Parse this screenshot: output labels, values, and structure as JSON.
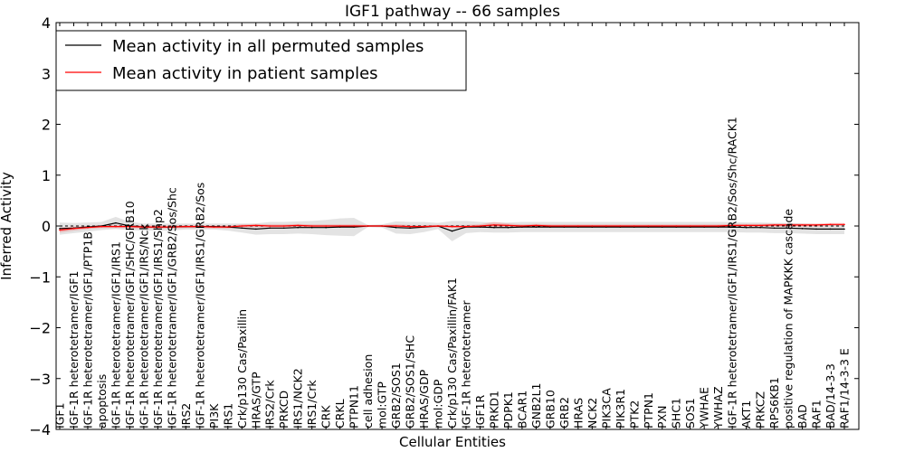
{
  "chart_data": {
    "type": "line",
    "title": "IGF1 pathway -- 66 samples",
    "xlabel": "Cellular Entities",
    "ylabel": "Inferred Activity",
    "ylim": [
      -4,
      4
    ],
    "yticks": [
      -4,
      -3,
      -2,
      -1,
      0,
      1,
      2,
      3,
      4
    ],
    "ytick_labels": [
      "−4",
      "−3",
      "−2",
      "−1",
      "0",
      "1",
      "2",
      "3",
      "4"
    ],
    "legend_position": "upper-left",
    "legend": [
      {
        "label": "Mean activity in all permuted samples",
        "color": "#000000"
      },
      {
        "label": "Mean activity in patient samples",
        "color": "#ff0000"
      }
    ],
    "categories": [
      "IGF1",
      "IGF-1R heterotetramer/IGF1",
      "IGF-1R heterotetramer/IGF1/PTP1B",
      "apoptosis",
      "IGF-1R heterotetramer/IGF1/IRS1",
      "IGF-1R heterotetramer/IGF1/SHC/GRB10",
      "IGF-1R heterotetramer/IGF1/IRS/Nck",
      "IGF-1R heterotetramer/IGF1/IRS1/Shp2",
      "IGF-1R heterotetramer/IGF1/GRB2/Sos/Shc",
      "IRS2",
      "IGF-1R heterotetramer/IGF1/IRS1/GRB2/Sos",
      "PI3K",
      "IRS1",
      "Crk/p130 Cas/Paxillin",
      "HRAS/GTP",
      "IRS2/Crk",
      "PRKCD",
      "IRS1/NCK2",
      "IRS1/Crk",
      "CRK",
      "CRKL",
      "PTPN11",
      "cell adhesion",
      "mol:GTP",
      "GRB2/SOS1",
      "GRB2/SOS1/SHC",
      "HRAS/GDP",
      "mol:GDP",
      "Crk/p130 Cas/Paxillin/FAK1",
      "IGF-1R heterotetramer",
      "IGF1R",
      "PRKD1",
      "PDPK1",
      "BCAR1",
      "GNB2L1",
      "GRB10",
      "GRB2",
      "HRAS",
      "NCK2",
      "PIK3CA",
      "PIK3R1",
      "PTK2",
      "PTPN1",
      "PXN",
      "SHC1",
      "SOS1",
      "YWHAE",
      "YWHAZ",
      "IGF-1R heterotetramer/IGF1/IRS1/GRB2/Sos/Shc/RACK1",
      "AKT1",
      "PRKCZ",
      "RPS6KB1",
      "positive regulation of MAPKKK cascade",
      "BAD",
      "RAF1",
      "BAD/14-3-3",
      "RAF1/14-3-3 E"
    ],
    "series": [
      {
        "name": "Mean activity in all permuted samples",
        "color": "#000000",
        "values": [
          -0.05,
          -0.04,
          -0.02,
          0.0,
          0.06,
          0.0,
          -0.02,
          -0.02,
          -0.02,
          -0.01,
          -0.01,
          -0.01,
          -0.02,
          -0.04,
          -0.06,
          -0.04,
          -0.04,
          -0.03,
          -0.03,
          -0.03,
          -0.02,
          -0.02,
          0.0,
          0.0,
          -0.03,
          -0.04,
          -0.02,
          0.0,
          -0.1,
          -0.02,
          -0.02,
          -0.03,
          -0.03,
          -0.02,
          -0.02,
          -0.02,
          -0.02,
          -0.02,
          -0.02,
          -0.02,
          -0.02,
          -0.02,
          -0.02,
          -0.02,
          -0.02,
          -0.02,
          -0.02,
          -0.02,
          -0.02,
          -0.03,
          -0.03,
          -0.04,
          -0.04,
          -0.05,
          -0.06,
          -0.06,
          -0.06
        ],
        "band": [
          0.12,
          0.1,
          0.09,
          0.08,
          0.12,
          0.08,
          0.07,
          0.07,
          0.07,
          0.06,
          0.06,
          0.06,
          0.07,
          0.09,
          0.11,
          0.12,
          0.12,
          0.12,
          0.13,
          0.15,
          0.17,
          0.18,
          0.02,
          0.03,
          0.12,
          0.12,
          0.1,
          0.06,
          0.2,
          0.12,
          0.1,
          0.1,
          0.1,
          0.1,
          0.1,
          0.1,
          0.1,
          0.1,
          0.1,
          0.1,
          0.1,
          0.1,
          0.1,
          0.1,
          0.1,
          0.1,
          0.1,
          0.1,
          0.1,
          0.1,
          0.1,
          0.1,
          0.1,
          0.1,
          0.1,
          0.1,
          0.1
        ]
      },
      {
        "name": "Mean activity in patient samples",
        "color": "#ff0000",
        "values": [
          -0.08,
          -0.05,
          -0.03,
          -0.01,
          -0.01,
          -0.01,
          -0.02,
          -0.02,
          -0.02,
          -0.01,
          -0.01,
          -0.02,
          -0.02,
          0.0,
          0.01,
          0.0,
          0.0,
          0.01,
          0.0,
          0.0,
          0.0,
          0.0,
          0.0,
          0.0,
          0.0,
          -0.01,
          -0.01,
          0.0,
          -0.01,
          -0.01,
          0.0,
          0.02,
          0.01,
          0.0,
          0.01,
          0.0,
          0.0,
          0.0,
          0.0,
          0.0,
          0.0,
          0.0,
          0.0,
          0.0,
          0.0,
          0.0,
          0.0,
          0.0,
          0.01,
          0.01,
          0.01,
          0.02,
          0.02,
          0.02,
          0.02,
          0.03,
          0.03
        ],
        "band": [
          0.05,
          0.04,
          0.03,
          0.03,
          0.03,
          0.03,
          0.03,
          0.03,
          0.03,
          0.03,
          0.03,
          0.03,
          0.03,
          0.03,
          0.03,
          0.03,
          0.03,
          0.03,
          0.03,
          0.03,
          0.03,
          0.03,
          0.02,
          0.02,
          0.03,
          0.03,
          0.03,
          0.02,
          0.03,
          0.03,
          0.03,
          0.06,
          0.04,
          0.03,
          0.03,
          0.03,
          0.03,
          0.03,
          0.03,
          0.03,
          0.03,
          0.03,
          0.03,
          0.03,
          0.03,
          0.03,
          0.03,
          0.03,
          0.03,
          0.03,
          0.03,
          0.03,
          0.03,
          0.03,
          0.03,
          0.03,
          0.03
        ]
      }
    ]
  }
}
